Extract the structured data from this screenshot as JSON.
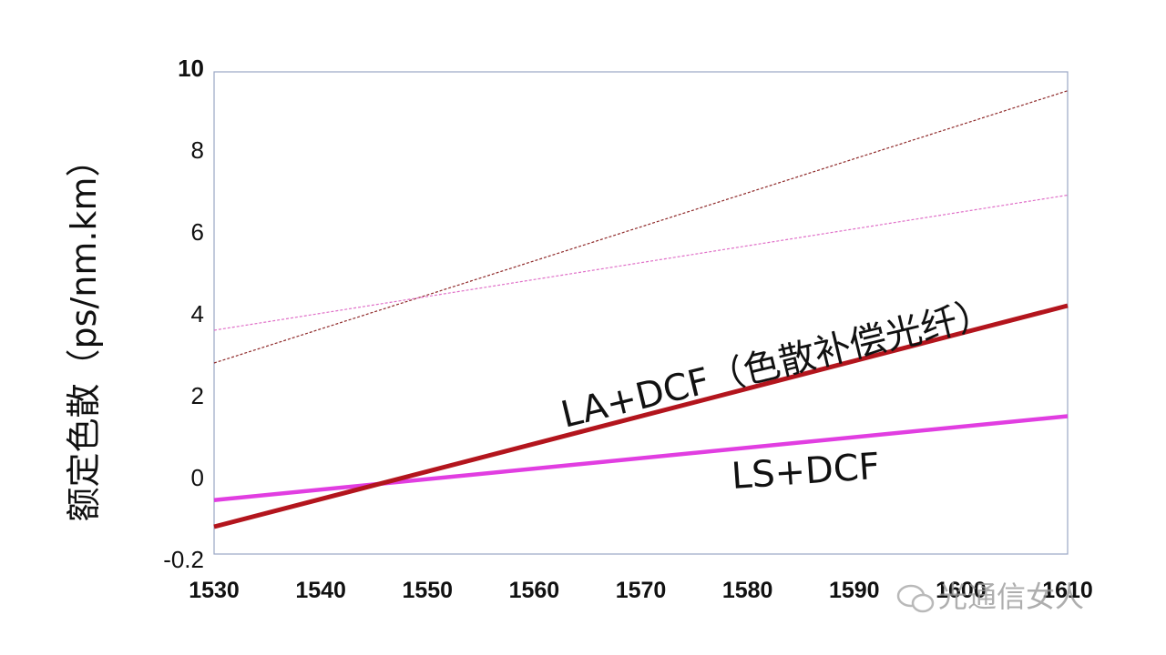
{
  "chart_data": {
    "type": "line",
    "ylabel": "额定色散（ps/nm.km）",
    "xlim": [
      1530,
      1610
    ],
    "ylim_top": 10,
    "y_ticks": [
      "10",
      "8",
      "6",
      "4",
      "2",
      "0",
      "-0.2"
    ],
    "x_ticks": [
      "1530",
      "1540",
      "1550",
      "1560",
      "1570",
      "1580",
      "1590",
      "1600",
      "1610"
    ],
    "series": [
      {
        "name": "LA+DCF（色散补偿光纤）",
        "color": "#b3151d",
        "style": "solid",
        "x": [
          1530,
          1610
        ],
        "y": [
          -1.2,
          4.2
        ]
      },
      {
        "name": "LS+DCF",
        "color": "#e13ee1",
        "style": "solid",
        "x": [
          1530,
          1610
        ],
        "y": [
          -0.55,
          1.5
        ]
      },
      {
        "name": "",
        "color": "#8f2a2a",
        "style": "dotted",
        "x": [
          1530,
          1610
        ],
        "y": [
          2.8,
          9.45
        ]
      },
      {
        "name": "",
        "color": "#e070c8",
        "style": "dotted",
        "x": [
          1530,
          1610
        ],
        "y": [
          3.6,
          6.9
        ]
      }
    ],
    "annotations": [
      {
        "text": "LA+DCF（色散补偿光纤）",
        "series": 0
      },
      {
        "text": "LS+DCF",
        "series": 1
      }
    ],
    "grid": false
  },
  "watermark": {
    "text": "光通信女人"
  }
}
